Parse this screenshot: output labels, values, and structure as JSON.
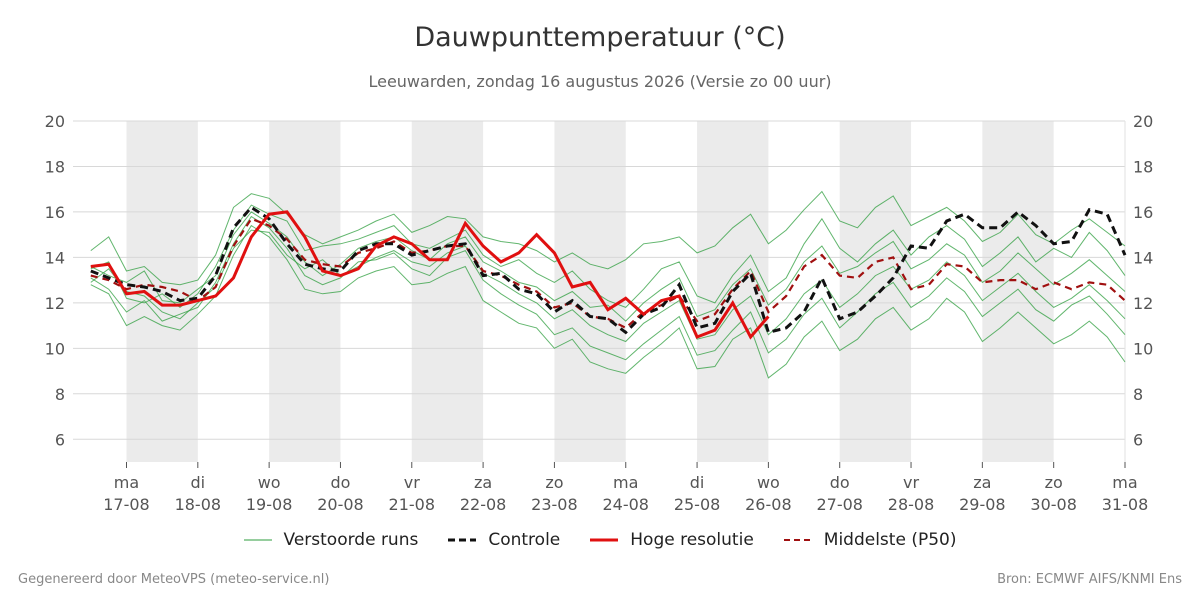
{
  "title": "Dauwpunttemperatuur (°C)",
  "subtitle": "Leeuwarden, zondag 16 augustus 2026 (Versie zo 00 uur)",
  "legend": {
    "perturbed": "Verstoorde runs",
    "control": "Controle",
    "hires": "Hoge resolutie",
    "median": "Middelste (P50)"
  },
  "footer": {
    "left": "Gegenereerd door MeteoVPS (meteo-service.nl)",
    "right": "Bron: ECMWF AIFS/KNMI Ens"
  },
  "colors": {
    "perturbed": "#2e9e3e",
    "control": "#111111",
    "hires": "#e01010",
    "median": "#a01010",
    "weekend_band": "#ebebeb",
    "grid": "#d8d8d8"
  },
  "chart_data": {
    "type": "line",
    "title": "Dauwpunttemperatuur (°C)",
    "ylim": [
      5,
      20
    ],
    "yticks": [
      6,
      8,
      10,
      12,
      14,
      16,
      18,
      20
    ],
    "x_range_days": [
      16.25,
      31.0
    ],
    "x_ticks": [
      {
        "day": 17,
        "weekday": "ma",
        "date": "17-08"
      },
      {
        "day": 18,
        "weekday": "di",
        "date": "18-08"
      },
      {
        "day": 19,
        "weekday": "wo",
        "date": "19-08"
      },
      {
        "day": 20,
        "weekday": "do",
        "date": "20-08"
      },
      {
        "day": 21,
        "weekday": "vr",
        "date": "21-08"
      },
      {
        "day": 22,
        "weekday": "za",
        "date": "22-08"
      },
      {
        "day": 23,
        "weekday": "zo",
        "date": "23-08"
      },
      {
        "day": 24,
        "weekday": "ma",
        "date": "24-08"
      },
      {
        "day": 25,
        "weekday": "di",
        "date": "25-08"
      },
      {
        "day": 26,
        "weekday": "wo",
        "date": "26-08"
      },
      {
        "day": 27,
        "weekday": "do",
        "date": "27-08"
      },
      {
        "day": 28,
        "weekday": "vr",
        "date": "28-08"
      },
      {
        "day": 29,
        "weekday": "za",
        "date": "29-08"
      },
      {
        "day": 30,
        "weekday": "zo",
        "date": "30-08"
      },
      {
        "day": 31,
        "weekday": "ma",
        "date": "31-08"
      }
    ],
    "shaded_days": [
      [
        17,
        18
      ],
      [
        19,
        20
      ],
      [
        21,
        22
      ],
      [
        23,
        24
      ],
      [
        25,
        26
      ],
      [
        27,
        28
      ],
      [
        29,
        30
      ]
    ],
    "series": [
      {
        "name": "Controle",
        "style": "dashed",
        "x": [
          16.5,
          16.75,
          17,
          17.25,
          17.5,
          17.75,
          18,
          18.25,
          18.5,
          18.75,
          19,
          19.25,
          19.5,
          19.75,
          20,
          20.25,
          20.5,
          20.75,
          21,
          21.25,
          21.5,
          21.75,
          22,
          22.25,
          22.5,
          22.75,
          23,
          23.25,
          23.5,
          23.75,
          24,
          24.25,
          24.5,
          24.75,
          25,
          25.25,
          25.5,
          25.75,
          26,
          26.25,
          26.5,
          26.75,
          27,
          27.25,
          27.5,
          27.75,
          28,
          28.25,
          28.5,
          28.75,
          29,
          29.25,
          29.5,
          29.75,
          30,
          30.25,
          30.5,
          30.75,
          31
        ],
        "y": [
          13.4,
          13.1,
          12.8,
          12.7,
          12.5,
          12.1,
          12.2,
          13.2,
          15.3,
          16.2,
          15.7,
          14.6,
          13.7,
          13.5,
          13.4,
          14.3,
          14.6,
          14.6,
          14.1,
          14.3,
          14.5,
          14.6,
          13.2,
          13.3,
          12.6,
          12.4,
          11.6,
          12.1,
          11.4,
          11.3,
          10.7,
          11.5,
          11.8,
          12.8,
          10.9,
          11.1,
          12.5,
          13.3,
          10.7,
          10.9,
          11.6,
          13.1,
          11.3,
          11.6,
          12.3,
          13.1,
          14.5,
          14.4,
          15.6,
          15.9,
          15.3,
          15.3,
          16.0,
          15.4,
          14.6,
          14.7,
          16.1,
          15.9,
          14.1
        ]
      },
      {
        "name": "Hoge resolutie",
        "style": "solid",
        "x": [
          16.5,
          16.75,
          17,
          17.25,
          17.5,
          17.75,
          18,
          18.25,
          18.5,
          18.75,
          19,
          19.25,
          19.5,
          19.75,
          20,
          20.25,
          20.5,
          20.75,
          21,
          21.25,
          21.5,
          21.75,
          22,
          22.25,
          22.5,
          22.75,
          23,
          23.25,
          23.5,
          23.75,
          24,
          24.25,
          24.5,
          24.75,
          25,
          25.25,
          25.5,
          25.75,
          26
        ],
        "y": [
          13.6,
          13.7,
          12.4,
          12.5,
          11.9,
          11.9,
          12.1,
          12.3,
          13.1,
          14.9,
          15.9,
          16.0,
          14.9,
          13.4,
          13.2,
          13.5,
          14.5,
          14.9,
          14.6,
          13.9,
          13.9,
          15.5,
          14.5,
          13.8,
          14.2,
          15.0,
          14.2,
          12.7,
          12.9,
          11.7,
          12.2,
          11.5,
          12.1,
          12.3,
          10.5,
          10.8,
          12.0,
          10.5,
          11.4
        ]
      },
      {
        "name": "Middelste (P50)",
        "style": "dashed",
        "x": [
          16.5,
          16.75,
          17,
          17.25,
          17.5,
          17.75,
          18,
          18.25,
          18.5,
          18.75,
          19,
          19.25,
          19.5,
          19.75,
          20,
          20.25,
          20.5,
          20.75,
          21,
          21.25,
          21.5,
          21.75,
          22,
          22.25,
          22.5,
          22.75,
          23,
          23.25,
          23.5,
          23.75,
          24,
          24.25,
          24.5,
          24.75,
          25,
          25.25,
          25.5,
          25.75,
          26,
          26.25,
          26.5,
          26.75,
          27,
          27.25,
          27.5,
          27.75,
          28,
          28.25,
          28.5,
          28.75,
          29,
          29.25,
          29.5,
          29.75,
          30,
          30.25,
          30.5,
          30.75,
          31
        ],
        "y": [
          13.2,
          13.0,
          12.6,
          12.8,
          12.7,
          12.5,
          12.1,
          12.7,
          14.5,
          15.7,
          15.4,
          14.8,
          13.9,
          13.7,
          13.6,
          14.2,
          14.4,
          14.7,
          14.2,
          14.3,
          14.5,
          14.5,
          13.4,
          13.2,
          12.8,
          12.5,
          11.8,
          12.0,
          11.4,
          11.3,
          10.9,
          11.6,
          11.9,
          12.3,
          11.2,
          11.5,
          12.6,
          13.4,
          11.6,
          12.3,
          13.6,
          14.1,
          13.2,
          13.1,
          13.8,
          14.0,
          12.6,
          12.8,
          13.7,
          13.6,
          12.9,
          13.0,
          13.0,
          12.6,
          12.9,
          12.6,
          12.9,
          12.8,
          12.1
        ]
      }
    ],
    "perturbed_runs": [
      [
        13.5,
        13.8,
        12.2,
        12.0,
        12.4,
        11.8,
        12.4,
        13.6,
        15.2,
        16.3,
        15.9,
        15.6,
        14.3,
        14.5,
        14.6,
        14.8,
        15.1,
        15.4,
        14.6,
        14.4,
        14.8,
        15.2,
        14.1,
        13.6,
        13.9,
        13.3,
        12.9,
        13.4,
        12.6,
        12.1,
        11.8,
        12.6,
        13.5,
        13.8,
        12.3,
        12.0,
        13.2,
        14.1,
        12.5,
        13.1,
        14.6,
        15.7,
        14.4,
        13.8,
        14.6,
        15.2,
        14.1,
        14.9,
        15.4,
        14.8,
        13.6,
        14.2,
        14.9,
        13.8,
        14.4,
        14.0,
        15.1,
        14.3,
        13.2
      ],
      [
        13.1,
        12.6,
        11.6,
        12.1,
        11.2,
        11.5,
        11.8,
        12.9,
        14.6,
        15.8,
        15.3,
        14.4,
        13.2,
        12.8,
        13.1,
        13.8,
        13.9,
        14.2,
        13.5,
        13.2,
        14.0,
        14.3,
        13.0,
        12.4,
        11.9,
        11.5,
        10.6,
        10.9,
        10.1,
        9.8,
        9.5,
        10.2,
        10.8,
        11.4,
        9.7,
        9.9,
        10.8,
        11.6,
        9.8,
        10.4,
        11.5,
        12.2,
        10.9,
        11.6,
        12.4,
        12.9,
        11.8,
        12.3,
        13.1,
        12.5,
        11.4,
        12.0,
        12.6,
        11.7,
        11.2,
        11.9,
        12.3,
        11.5,
        10.6
      ],
      [
        14.3,
        14.9,
        13.4,
        13.6,
        12.9,
        12.8,
        13.0,
        14.1,
        16.2,
        16.8,
        16.6,
        15.9,
        15.0,
        14.6,
        14.9,
        15.2,
        15.6,
        15.9,
        15.1,
        15.4,
        15.8,
        15.7,
        14.9,
        14.7,
        14.6,
        14.3,
        13.8,
        14.2,
        13.7,
        13.5,
        13.9,
        14.6,
        14.7,
        14.9,
        14.2,
        14.5,
        15.3,
        15.9,
        14.6,
        15.2,
        16.1,
        16.9,
        15.6,
        15.3,
        16.2,
        16.7,
        15.4,
        15.8,
        16.2,
        15.6,
        14.7,
        15.1,
        15.9,
        15.0,
        14.6,
        15.2,
        15.7,
        15.1,
        14.5
      ],
      [
        12.8,
        12.4,
        11.0,
        11.4,
        11.0,
        10.8,
        11.5,
        12.3,
        14.1,
        15.4,
        14.9,
        13.9,
        12.6,
        12.4,
        12.5,
        13.1,
        13.4,
        13.6,
        12.8,
        12.9,
        13.3,
        13.6,
        12.1,
        11.6,
        11.1,
        10.9,
        10.0,
        10.4,
        9.4,
        9.1,
        8.9,
        9.6,
        10.2,
        10.9,
        9.1,
        9.2,
        10.4,
        10.9,
        8.7,
        9.3,
        10.5,
        11.2,
        9.9,
        10.4,
        11.3,
        11.8,
        10.8,
        11.3,
        12.2,
        11.6,
        10.3,
        10.9,
        11.6,
        10.9,
        10.2,
        10.6,
        11.2,
        10.5,
        9.4
      ],
      [
        13.6,
        13.2,
        12.9,
        13.4,
        12.1,
        12.0,
        12.6,
        13.2,
        15.0,
        16.0,
        15.5,
        14.9,
        13.8,
        13.2,
        13.7,
        14.4,
        14.7,
        14.9,
        14.3,
        13.9,
        14.6,
        14.9,
        13.8,
        13.4,
        12.9,
        12.7,
        12.1,
        12.5,
        11.8,
        11.9,
        11.2,
        12.0,
        12.6,
        13.1,
        11.4,
        11.7,
        12.8,
        13.5,
        11.9,
        12.6,
        13.8,
        14.5,
        13.3,
        13.6,
        14.2,
        14.7,
        13.5,
        13.9,
        14.6,
        14.1,
        12.9,
        13.4,
        14.2,
        13.5,
        12.8,
        13.3,
        13.9,
        13.2,
        12.5
      ],
      [
        12.9,
        13.5,
        12.5,
        12.3,
        11.6,
        11.3,
        12.0,
        12.7,
        14.4,
        15.2,
        15.1,
        14.1,
        13.5,
        13.9,
        13.2,
        13.6,
        14.0,
        14.3,
        13.8,
        13.6,
        14.2,
        14.5,
        13.3,
        12.9,
        12.4,
        12.0,
        11.3,
        11.7,
        11.0,
        10.6,
        10.3,
        11.1,
        11.6,
        12.1,
        10.4,
        10.6,
        11.7,
        12.3,
        10.6,
        11.3,
        12.4,
        13.0,
        11.8,
        12.4,
        13.2,
        13.6,
        12.6,
        13.0,
        13.8,
        13.2,
        12.1,
        12.7,
        13.3,
        12.5,
        11.8,
        12.2,
        12.8,
        12.1,
        11.3
      ]
    ]
  }
}
